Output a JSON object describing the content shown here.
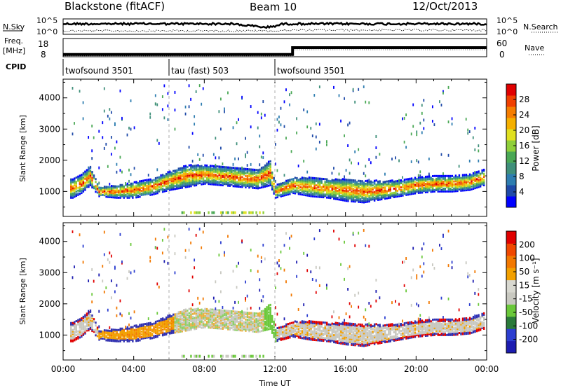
{
  "header": {
    "station": "Blackstone (fitACF)",
    "beam": "Beam 10",
    "date": "12/Oct/2013"
  },
  "top_panels": {
    "nsky_label": "N.Sky",
    "nsearch_label": "N.Search",
    "nsky_ticks": [
      "10^5",
      "10^0"
    ],
    "nsearch_ticks": [
      "10^5",
      "10^0"
    ],
    "freq_label": "Freq.",
    "freq_unit": "[MHz]",
    "freq_ticks": [
      "18",
      "8"
    ],
    "nave_label": "Nave",
    "nave_ticks": [
      "60",
      "0"
    ],
    "cpid_label": "CPID",
    "cpid_segments": [
      {
        "label": "twofsound 3501",
        "start_hour": 0,
        "end_hour": 6
      },
      {
        "label": "tau (fast) 503",
        "start_hour": 6,
        "end_hour": 12
      },
      {
        "label": "twofsound 3501",
        "start_hour": 12,
        "end_hour": 24
      }
    ],
    "freq_series": {
      "x_hours": [
        0,
        13,
        13,
        24
      ],
      "mhz": [
        8.5,
        8.5,
        13,
        13
      ]
    }
  },
  "chart_data": [
    {
      "type": "heatmap",
      "title": "",
      "xlabel": "",
      "ylabel": "Slant Range [km]",
      "xlim": [
        0,
        24
      ],
      "ylim": [
        200,
        4600
      ],
      "yticks": [
        "4000",
        "3000",
        "2000",
        "1000"
      ],
      "colorbar": {
        "label": "Power [dB]",
        "ticks": [
          "28",
          "24",
          "20",
          "16",
          "12",
          "8",
          "4"
        ],
        "colors": [
          "#0000ff",
          "#1f4aa8",
          "#2e7db0",
          "#3f8f7a",
          "#4aa855",
          "#8fcf3a",
          "#e0e020",
          "#f5b000",
          "#f57d00",
          "#f04000",
          "#e00000"
        ]
      },
      "bands": [
        {
          "x": [
            0.5,
            1,
            1.5,
            2,
            3,
            4,
            5,
            6,
            7,
            8,
            9,
            10,
            11,
            11.7,
            12,
            13,
            14,
            15,
            16,
            17,
            18,
            19,
            20,
            21,
            22,
            23,
            23.8
          ],
          "y": [
            1100,
            1250,
            1500,
            1000,
            1000,
            1050,
            1150,
            1350,
            1500,
            1550,
            1500,
            1450,
            1400,
            1600,
            1000,
            1200,
            1150,
            1100,
            1050,
            1000,
            1050,
            1100,
            1200,
            1250,
            1250,
            1300,
            1450
          ],
          "hw": [
            300,
            300,
            300,
            150,
            200,
            250,
            250,
            300,
            350,
            300,
            300,
            300,
            300,
            400,
            200,
            250,
            300,
            300,
            350,
            350,
            300,
            250,
            250,
            250,
            250,
            250,
            250
          ]
        }
      ]
    },
    {
      "type": "heatmap",
      "title": "",
      "xlabel": "Time UT",
      "ylabel": "Slant Range [km]",
      "xlim": [
        0,
        24
      ],
      "ylim": [
        200,
        4600
      ],
      "xticks": [
        "00:00",
        "04:00",
        "08:00",
        "12:00",
        "16:00",
        "20:00",
        "00:00"
      ],
      "yticks": [
        "4000",
        "3000",
        "2000",
        "1000"
      ],
      "colorbar": {
        "label": "Velocity [m s⁻¹]",
        "ticks": [
          "200",
          "100",
          "50",
          "15",
          "-15",
          "-50",
          "-100",
          "-200"
        ],
        "colors": [
          "#1c1cb0",
          "#2c3ed0",
          "#2a7a3a",
          "#6ac83a",
          "#c8c8c0",
          "#d8d8d0",
          "#f2a000",
          "#f27800",
          "#f04800",
          "#e00000"
        ]
      }
    }
  ]
}
